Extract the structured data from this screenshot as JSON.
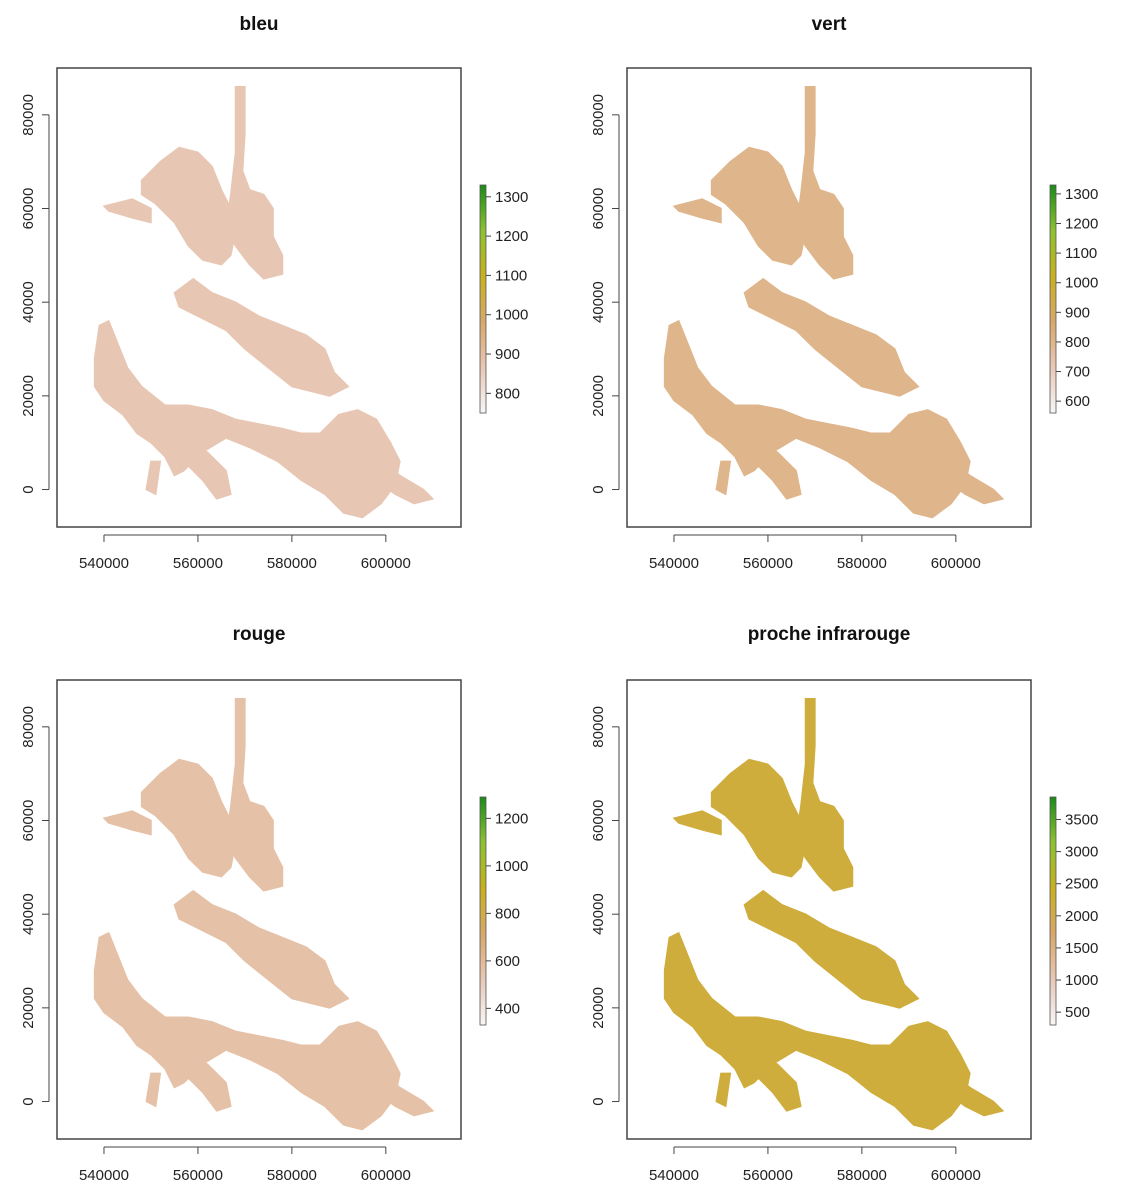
{
  "chart_data": [
    {
      "type": "heatmap",
      "title": "bleu",
      "x_ticks": [
        "540000",
        "560000",
        "580000",
        "600000"
      ],
      "y_ticks": [
        "0",
        "20000",
        "40000",
        "60000",
        "80000"
      ],
      "xlim": [
        530000,
        616000
      ],
      "ylim": [
        -8000,
        90000
      ],
      "colorbar": {
        "ticks": [
          "800",
          "900",
          "1000",
          "1100",
          "1200",
          "1300"
        ],
        "range": [
          750,
          1330
        ],
        "colors": [
          "#f7f7f7",
          "#e8c7b6",
          "#d8a86a",
          "#c8b020",
          "#8cc230",
          "#1a8a1a"
        ]
      },
      "dominant_value": 870
    },
    {
      "type": "heatmap",
      "title": "vert",
      "x_ticks": [
        "540000",
        "560000",
        "580000",
        "600000"
      ],
      "y_ticks": [
        "0",
        "20000",
        "40000",
        "60000",
        "80000"
      ],
      "xlim": [
        530000,
        616000
      ],
      "ylim": [
        -8000,
        90000
      ],
      "colorbar": {
        "ticks": [
          "600",
          "700",
          "800",
          "900",
          "1000",
          "1100",
          "1200",
          "1300"
        ],
        "range": [
          560,
          1330
        ],
        "colors": [
          "#f7f7f7",
          "#e8c7b6",
          "#d8a86a",
          "#c8b020",
          "#8cc230",
          "#1a8a1a"
        ]
      },
      "dominant_value": 800
    },
    {
      "type": "heatmap",
      "title": "rouge",
      "x_ticks": [
        "540000",
        "560000",
        "580000",
        "600000"
      ],
      "y_ticks": [
        "0",
        "20000",
        "40000",
        "60000",
        "80000"
      ],
      "xlim": [
        530000,
        616000
      ],
      "ylim": [
        -8000,
        90000
      ],
      "colorbar": {
        "ticks": [
          "400",
          "600",
          "800",
          "1000",
          "1200"
        ],
        "range": [
          330,
          1290
        ],
        "colors": [
          "#f7f7f7",
          "#e8c7b6",
          "#d8a86a",
          "#c8b020",
          "#8cc230",
          "#1a8a1a"
        ]
      },
      "dominant_value": 560
    },
    {
      "type": "heatmap",
      "title": "proche infrarouge",
      "x_ticks": [
        "540000",
        "560000",
        "580000",
        "600000"
      ],
      "y_ticks": [
        "0",
        "20000",
        "40000",
        "60000",
        "80000"
      ],
      "xlim": [
        530000,
        616000
      ],
      "ylim": [
        -8000,
        90000
      ],
      "colorbar": {
        "ticks": [
          "500",
          "1000",
          "1500",
          "2000",
          "2500",
          "3000",
          "3500"
        ],
        "range": [
          300,
          3850
        ],
        "colors": [
          "#f7f7f7",
          "#e8c7b6",
          "#d8a86a",
          "#c8b020",
          "#8cc230",
          "#1a8a1a"
        ]
      },
      "dominant_value": 2150
    }
  ]
}
